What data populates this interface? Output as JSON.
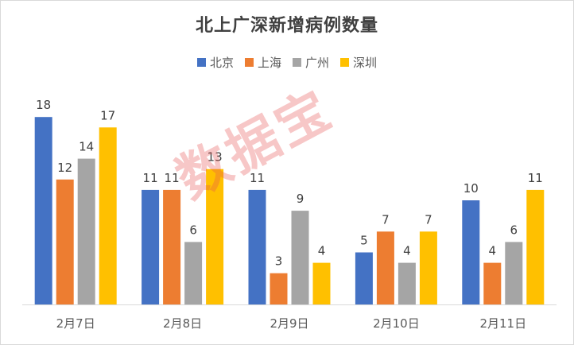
{
  "chart_data": {
    "type": "bar",
    "title": "北上广深新增病例数量",
    "categories": [
      "2月7日",
      "2月8日",
      "2月9日",
      "2月10日",
      "2月11日"
    ],
    "series": [
      {
        "name": "北京",
        "color": "#4472C4",
        "values": [
          18,
          11,
          11,
          5,
          10
        ]
      },
      {
        "name": "上海",
        "color": "#ED7D31",
        "values": [
          12,
          11,
          3,
          7,
          4
        ]
      },
      {
        "name": "广州",
        "color": "#A5A5A5",
        "values": [
          14,
          6,
          9,
          4,
          6
        ]
      },
      {
        "name": "深圳",
        "color": "#FFC000",
        "values": [
          17,
          13,
          4,
          7,
          11
        ]
      }
    ],
    "ylim": [
      0,
      18
    ],
    "grid": false,
    "legend": "top-center",
    "data_labels": true
  },
  "watermark": "数据宝"
}
